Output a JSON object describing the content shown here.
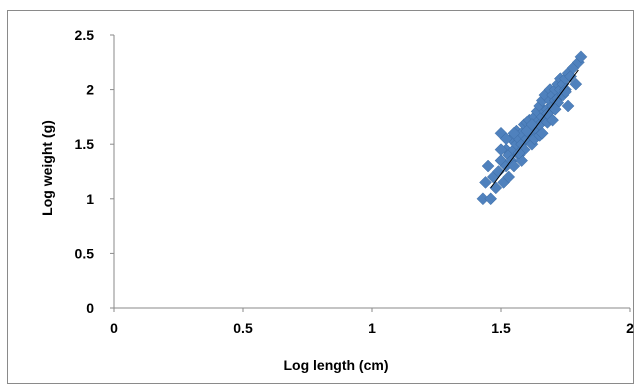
{
  "chart_data": {
    "type": "scatter",
    "xlabel": "Log length (cm)",
    "ylabel": "Log weight (g)",
    "xlim": [
      0,
      2
    ],
    "ylim": [
      0,
      2.5
    ],
    "x_ticks": [
      "0",
      "0.5",
      "1",
      "1.5",
      "2"
    ],
    "y_ticks": [
      "0",
      "0.5",
      "1",
      "1.5",
      "2",
      "2.5"
    ],
    "grid": false,
    "legend": "none",
    "marker": "diamond",
    "colors": {
      "marker": "#4f81bd",
      "trendline": "#000000",
      "axis": "#8a8a8a"
    },
    "trendline": {
      "x": [
        1.46,
        1.8
      ],
      "y": [
        1.1,
        2.18
      ]
    },
    "series": [
      {
        "x": [
          1.43,
          1.45,
          1.46,
          1.47,
          1.48,
          1.44,
          1.49,
          1.5,
          1.5,
          1.51,
          1.52,
          1.52,
          1.53,
          1.53,
          1.54,
          1.54,
          1.55,
          1.55,
          1.56,
          1.56,
          1.57,
          1.57,
          1.58,
          1.58,
          1.59,
          1.59,
          1.6,
          1.6,
          1.61,
          1.61,
          1.62,
          1.62,
          1.63,
          1.63,
          1.64,
          1.64,
          1.65,
          1.65,
          1.66,
          1.66,
          1.67,
          1.67,
          1.68,
          1.68,
          1.69,
          1.69,
          1.7,
          1.7,
          1.71,
          1.71,
          1.72,
          1.72,
          1.73,
          1.73,
          1.74,
          1.74,
          1.75,
          1.75,
          1.76,
          1.76,
          1.77,
          1.78,
          1.79,
          1.8,
          1.81,
          1.5,
          1.52,
          1.55,
          1.58,
          1.6,
          1.63,
          1.65,
          1.68,
          1.7,
          1.72,
          1.75,
          1.57,
          1.62,
          1.66,
          1.71
        ],
        "y": [
          1.0,
          1.3,
          1.0,
          1.2,
          1.1,
          1.15,
          1.25,
          1.35,
          1.6,
          1.15,
          1.3,
          1.45,
          1.2,
          1.4,
          1.35,
          1.55,
          1.45,
          1.3,
          1.5,
          1.62,
          1.4,
          1.55,
          1.6,
          1.5,
          1.45,
          1.68,
          1.55,
          1.7,
          1.6,
          1.72,
          1.65,
          1.5,
          1.75,
          1.62,
          1.7,
          1.8,
          1.68,
          1.85,
          1.75,
          1.9,
          1.8,
          1.95,
          1.82,
          1.7,
          1.9,
          2.0,
          1.85,
          1.95,
          2.0,
          1.9,
          2.05,
          1.92,
          2.0,
          2.1,
          1.95,
          2.05,
          2.1,
          2.0,
          2.15,
          1.85,
          2.12,
          2.2,
          2.05,
          2.25,
          2.3,
          1.45,
          1.55,
          1.6,
          1.35,
          1.62,
          1.55,
          1.58,
          1.78,
          1.72,
          1.88,
          1.98,
          1.42,
          1.68,
          1.6,
          1.82
        ]
      }
    ]
  }
}
